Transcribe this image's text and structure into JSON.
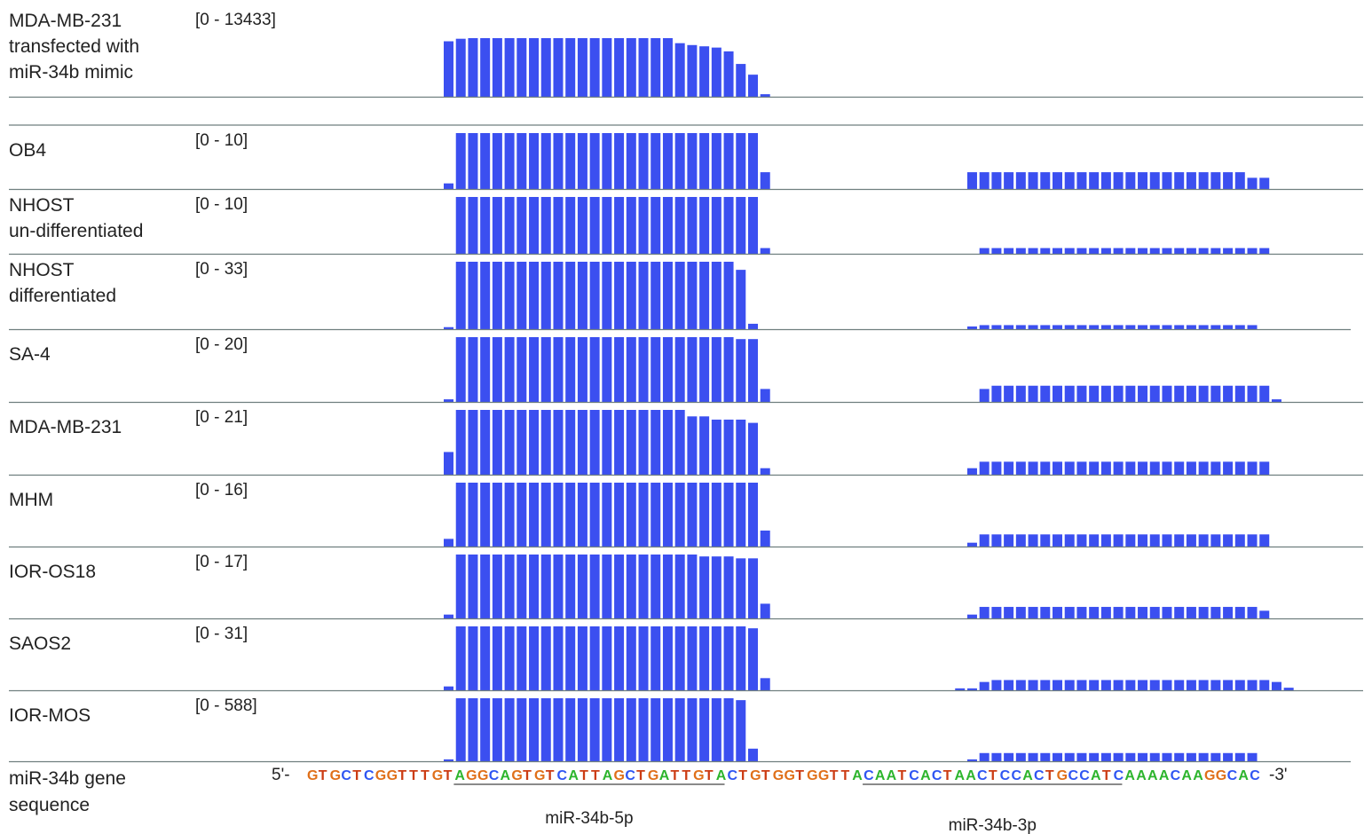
{
  "chart_data": {
    "type": "bar",
    "colors": {
      "bar": "#3b4ff0",
      "baseline": "#6f7f7f",
      "A": "#2db52d",
      "C": "#2f55f2",
      "G": "#e0701a",
      "T": "#cc3c14"
    },
    "tracks": [
      {
        "label_lines": [
          "MDA-MB-231",
          "transfected with",
          "miR-34b mimic"
        ],
        "range": "[0 - 13433]",
        "values": [
          0.88,
          0.92,
          0.93,
          0.93,
          0.93,
          0.93,
          0.93,
          0.93,
          0.93,
          0.93,
          0.93,
          0.93,
          0.93,
          0.93,
          0.93,
          0.93,
          0.93,
          0.93,
          0.93,
          0.85,
          0.82,
          0.8,
          0.78,
          0.72,
          0.52,
          0.35,
          0.04
        ]
      },
      {
        "label_lines": [
          "OB4"
        ],
        "range": "[0 - 10]",
        "values": [
          0.1,
          1,
          1,
          1,
          1,
          1,
          1,
          1,
          1,
          1,
          1,
          1,
          1,
          1,
          1,
          1,
          1,
          1,
          1,
          1,
          1,
          1,
          1,
          1,
          1,
          1,
          0.3,
          0,
          0,
          0,
          0,
          0,
          0,
          0,
          0,
          0,
          0,
          0,
          0,
          0,
          0,
          0,
          0,
          0.3,
          0.3,
          0.3,
          0.3,
          0.3,
          0.3,
          0.3,
          0.3,
          0.3,
          0.3,
          0.3,
          0.3,
          0.3,
          0.3,
          0.3,
          0.3,
          0.3,
          0.3,
          0.3,
          0.3,
          0.3,
          0.3,
          0.3,
          0.2,
          0.2
        ]
      },
      {
        "label_lines": [
          "NHOST",
          "un-differentiated"
        ],
        "range": "[0 - 10]",
        "values": [
          0,
          1,
          1,
          1,
          1,
          1,
          1,
          1,
          1,
          1,
          1,
          1,
          1,
          1,
          1,
          1,
          1,
          1,
          1,
          1,
          1,
          1,
          1,
          1,
          1,
          1,
          0.1,
          0,
          0,
          0,
          0,
          0,
          0,
          0,
          0,
          0,
          0,
          0,
          0,
          0,
          0,
          0,
          0,
          0,
          0.1,
          0.1,
          0.1,
          0.1,
          0.1,
          0.1,
          0.1,
          0.1,
          0.1,
          0.1,
          0.1,
          0.1,
          0.1,
          0.1,
          0.1,
          0.1,
          0.1,
          0.1,
          0.1,
          0.1,
          0.1,
          0.1,
          0.1,
          0.1
        ]
      },
      {
        "label_lines": [
          "NHOST",
          "differentiated"
        ],
        "range": "[0 - 33]",
        "values": [
          0.03,
          1,
          1,
          1,
          1,
          1,
          1,
          1,
          1,
          1,
          1,
          1,
          1,
          1,
          1,
          1,
          1,
          1,
          1,
          1,
          1,
          1,
          1,
          1,
          0.88,
          0.08,
          0,
          0,
          0,
          0,
          0,
          0,
          0,
          0,
          0,
          0,
          0,
          0,
          0,
          0,
          0,
          0,
          0,
          0.04,
          0.06,
          0.06,
          0.06,
          0.06,
          0.06,
          0.06,
          0.06,
          0.06,
          0.06,
          0.06,
          0.06,
          0.06,
          0.06,
          0.06,
          0.06,
          0.06,
          0.06,
          0.06,
          0.06,
          0.06,
          0.06,
          0.06,
          0.06
        ]
      },
      {
        "label_lines": [
          "SA-4"
        ],
        "range": "[0 - 20]",
        "values": [
          0.04,
          1,
          1,
          1,
          1,
          1,
          1,
          1,
          1,
          1,
          1,
          1,
          1,
          1,
          1,
          1,
          1,
          1,
          1,
          1,
          1,
          1,
          1,
          1,
          0.97,
          0.97,
          0.2,
          0,
          0,
          0,
          0,
          0,
          0,
          0,
          0,
          0,
          0,
          0,
          0,
          0,
          0,
          0,
          0,
          0,
          0.2,
          0.25,
          0.25,
          0.25,
          0.25,
          0.25,
          0.25,
          0.25,
          0.25,
          0.25,
          0.25,
          0.25,
          0.25,
          0.25,
          0.25,
          0.25,
          0.25,
          0.25,
          0.25,
          0.25,
          0.25,
          0.25,
          0.25,
          0.25,
          0.04
        ]
      },
      {
        "label_lines": [
          "MDA-MB-231"
        ],
        "range": "[0 - 21]",
        "values": [
          0.35,
          1,
          1,
          1,
          1,
          1,
          1,
          1,
          1,
          1,
          1,
          1,
          1,
          1,
          1,
          1,
          1,
          1,
          1,
          1,
          0.9,
          0.9,
          0.85,
          0.85,
          0.85,
          0.8,
          0.1,
          0,
          0,
          0,
          0,
          0,
          0,
          0,
          0,
          0,
          0,
          0,
          0,
          0,
          0,
          0,
          0,
          0.1,
          0.2,
          0.2,
          0.2,
          0.2,
          0.2,
          0.2,
          0.2,
          0.2,
          0.2,
          0.2,
          0.2,
          0.2,
          0.2,
          0.2,
          0.2,
          0.2,
          0.2,
          0.2,
          0.2,
          0.2,
          0.2,
          0.2,
          0.2,
          0.2
        ]
      },
      {
        "label_lines": [
          "MHM"
        ],
        "range": "[0 - 16]",
        "values": [
          0.12,
          1,
          1,
          1,
          1,
          1,
          1,
          1,
          1,
          1,
          1,
          1,
          1,
          1,
          1,
          1,
          1,
          1,
          1,
          1,
          1,
          1,
          1,
          1,
          1,
          1,
          0.25,
          0,
          0,
          0,
          0,
          0,
          0,
          0,
          0,
          0,
          0,
          0,
          0,
          0,
          0,
          0,
          0,
          0.06,
          0.19,
          0.19,
          0.19,
          0.19,
          0.19,
          0.19,
          0.19,
          0.19,
          0.19,
          0.19,
          0.19,
          0.19,
          0.19,
          0.19,
          0.19,
          0.19,
          0.19,
          0.19,
          0.19,
          0.19,
          0.19,
          0.19,
          0.19,
          0.19
        ]
      },
      {
        "label_lines": [
          "IOR-OS18"
        ],
        "range": "[0 - 17]",
        "values": [
          0.06,
          1,
          1,
          1,
          1,
          1,
          1,
          1,
          1,
          1,
          1,
          1,
          1,
          1,
          1,
          1,
          1,
          1,
          1,
          1,
          1,
          0.97,
          0.97,
          0.97,
          0.94,
          0.94,
          0.23,
          0,
          0,
          0,
          0,
          0,
          0,
          0,
          0,
          0,
          0,
          0,
          0,
          0,
          0,
          0,
          0,
          0.06,
          0.18,
          0.18,
          0.18,
          0.18,
          0.18,
          0.18,
          0.18,
          0.18,
          0.18,
          0.18,
          0.18,
          0.18,
          0.18,
          0.18,
          0.18,
          0.18,
          0.18,
          0.18,
          0.18,
          0.18,
          0.18,
          0.18,
          0.18,
          0.12
        ]
      },
      {
        "label_lines": [
          "SAOS2"
        ],
        "range": "[0 - 31]",
        "values": [
          0.06,
          1,
          1,
          1,
          1,
          1,
          1,
          1,
          1,
          1,
          1,
          1,
          1,
          1,
          1,
          1,
          1,
          1,
          1,
          1,
          1,
          1,
          1,
          1,
          1,
          0.97,
          0.19,
          0,
          0,
          0,
          0,
          0,
          0,
          0,
          0,
          0,
          0,
          0,
          0,
          0,
          0,
          0,
          0.03,
          0.03,
          0.13,
          0.16,
          0.16,
          0.16,
          0.16,
          0.16,
          0.16,
          0.16,
          0.16,
          0.16,
          0.16,
          0.16,
          0.16,
          0.16,
          0.16,
          0.16,
          0.16,
          0.16,
          0.16,
          0.16,
          0.16,
          0.16,
          0.16,
          0.16,
          0.13,
          0.04
        ]
      },
      {
        "label_lines": [
          "IOR-MOS"
        ],
        "range": "[0 - 588]",
        "values": [
          0.03,
          1,
          1,
          1,
          1,
          1,
          1,
          1,
          1,
          1,
          1,
          1,
          1,
          1,
          1,
          1,
          1,
          1,
          1,
          1,
          1,
          1,
          1,
          1,
          0.97,
          0.2,
          0,
          0,
          0,
          0,
          0,
          0,
          0,
          0,
          0,
          0,
          0,
          0,
          0,
          0,
          0,
          0,
          0,
          0.03,
          0.13,
          0.13,
          0.13,
          0.13,
          0.13,
          0.13,
          0.13,
          0.13,
          0.13,
          0.13,
          0.13,
          0.13,
          0.13,
          0.13,
          0.13,
          0.13,
          0.13,
          0.13,
          0.13,
          0.13,
          0.13,
          0.13,
          0.13
        ]
      }
    ],
    "sequence": {
      "label_lines": [
        "miR-34b gene",
        "sequence"
      ],
      "prefix": "5'-",
      "suffix": "-3'",
      "bases": "GTGCTCGGTTTGTAGGCAGTGTCATTAGCTGATTGTACTGTGGTGGTTACAATCACTAACTCCACTGCCATCAAAACAAGGCAC",
      "mature": [
        {
          "name": "miR-34b-5p",
          "start": 13,
          "end": 36
        },
        {
          "name": "miR-34b-3p",
          "start": 49,
          "end": 71
        }
      ]
    }
  }
}
